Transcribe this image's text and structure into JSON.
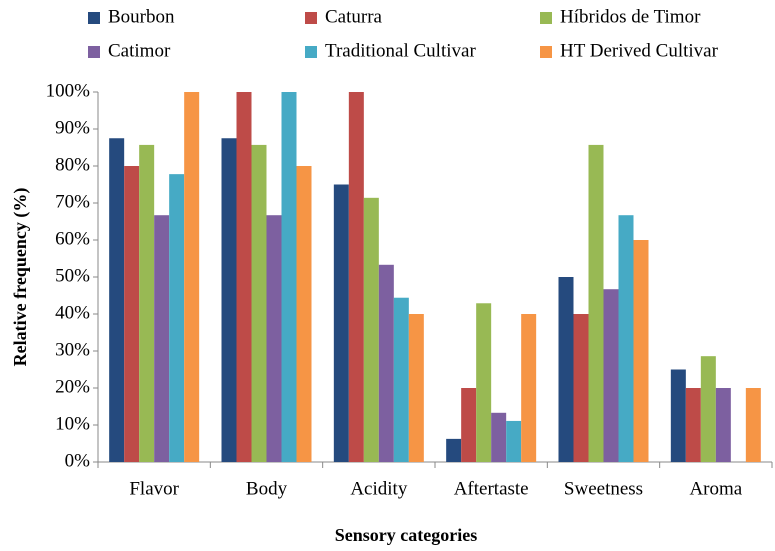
{
  "chart_data": {
    "type": "bar",
    "x_label": "Sensory categories",
    "y_label": "Relative frequency (%)",
    "categories": [
      "Flavor",
      "Body",
      "Acidity",
      "Aftertaste",
      "Sweetness",
      "Aroma"
    ],
    "series": [
      {
        "name": "Bourbon",
        "color": "#254a7e",
        "values": [
          87.5,
          87.5,
          75,
          6.25,
          50,
          25
        ]
      },
      {
        "name": "Caturra",
        "color": "#be4b48",
        "values": [
          80,
          100,
          100,
          20,
          40,
          20
        ]
      },
      {
        "name": "Híbridos de Timor",
        "color": "#98b954",
        "values": [
          85.7,
          85.7,
          71.4,
          42.9,
          85.7,
          28.6
        ]
      },
      {
        "name": "Catimor",
        "color": "#7d60a0",
        "values": [
          66.7,
          66.7,
          53.3,
          13.3,
          46.7,
          20
        ]
      },
      {
        "name": "Traditional Cultivar",
        "color": "#46aac5",
        "values": [
          77.8,
          100,
          44.4,
          11.1,
          66.7,
          0
        ]
      },
      {
        "name": "HT Derived Cultivar",
        "color": "#f69545",
        "values": [
          100,
          80,
          40,
          40,
          60,
          20
        ]
      }
    ],
    "ylim": [
      0,
      100
    ],
    "yticks": [
      {
        "value": 0,
        "label": "0%"
      },
      {
        "value": 10,
        "label": "10%"
      },
      {
        "value": 20,
        "label": "20%"
      },
      {
        "value": 30,
        "label": "30%"
      },
      {
        "value": 40,
        "label": "40%"
      },
      {
        "value": 50,
        "label": "50%"
      },
      {
        "value": 60,
        "label": "60%"
      },
      {
        "value": 70,
        "label": "70%"
      },
      {
        "value": 80,
        "label": "80%"
      },
      {
        "value": 90,
        "label": "90%"
      },
      {
        "value": 100,
        "label": "100%"
      }
    ],
    "grid": false
  }
}
